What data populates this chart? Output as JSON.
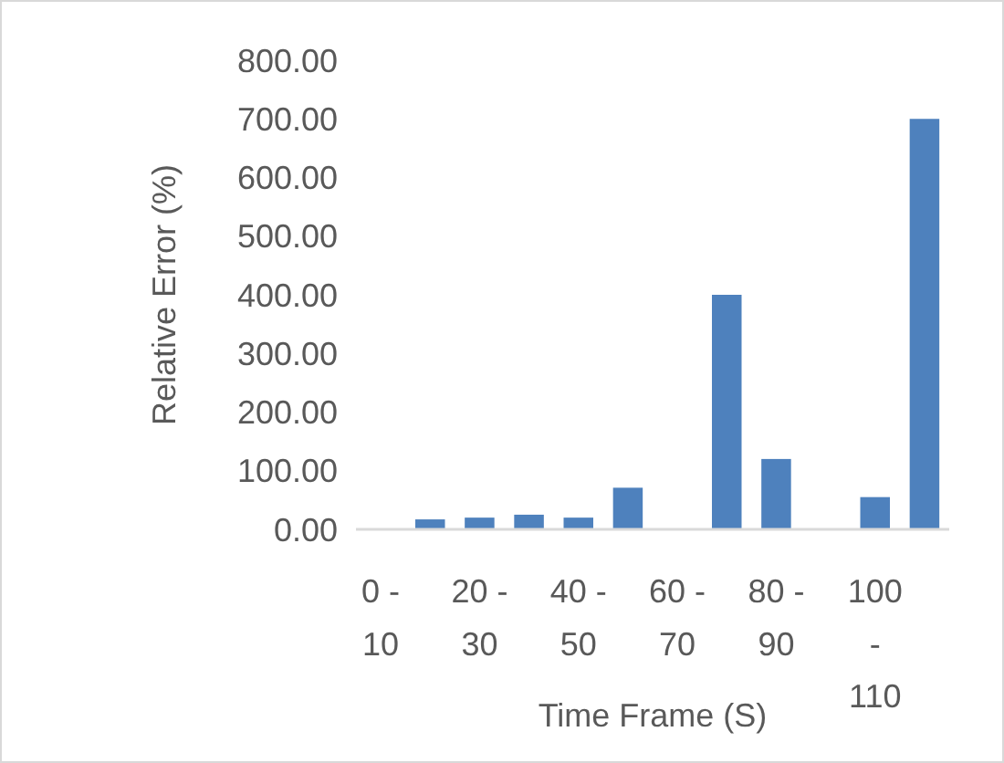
{
  "chart_data": {
    "type": "bar",
    "xlabel": "Time Frame (S)",
    "ylabel": "Relative Error (%)",
    "categories": [
      "0 - 10",
      null,
      "20 - 30",
      null,
      "40 - 50",
      null,
      "60 - 70",
      null,
      "80 - 90",
      null,
      "100 - 110",
      null
    ],
    "values": [
      0,
      17,
      20,
      25,
      20,
      71,
      0,
      400,
      120,
      0,
      55,
      700
    ],
    "color": "#4e81bd",
    "ylim": [
      0,
      800
    ],
    "yticks": [
      {
        "value": 0,
        "label": "0.00"
      },
      {
        "value": 100,
        "label": "100.00"
      },
      {
        "value": 200,
        "label": "200.00"
      },
      {
        "value": 300,
        "label": "300.00"
      },
      {
        "value": 400,
        "label": "400.00"
      },
      {
        "value": 500,
        "label": "500.00"
      },
      {
        "value": 600,
        "label": "600.00"
      },
      {
        "value": 700,
        "label": "700.00"
      },
      {
        "value": 800,
        "label": "800.00"
      }
    ],
    "grid": false
  }
}
